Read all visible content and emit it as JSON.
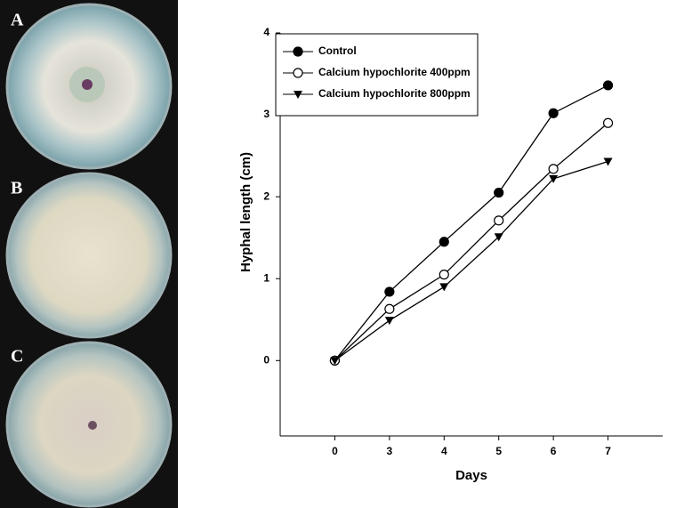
{
  "panels": {
    "labels": [
      "A",
      "B",
      "C"
    ]
  },
  "chart_data": {
    "type": "line",
    "x_label": "Days",
    "y_label": "Hyphal length (cm)",
    "categories": [
      "0",
      "3",
      "4",
      "5",
      "6",
      "7"
    ],
    "series": [
      {
        "name": "Control",
        "color": "#000000",
        "marker": "filled-circle",
        "values": [
          0,
          0.84,
          1.45,
          2.05,
          3.02,
          3.36
        ]
      },
      {
        "name": "Calcium hypochlorite 400ppm",
        "color": "#000000",
        "marker": "open-circle",
        "values": [
          0,
          0.63,
          1.05,
          1.71,
          2.34,
          2.9
        ]
      },
      {
        "name": "Calcium hypochlorite 800ppm",
        "color": "#000000",
        "marker": "filled-triangle-down",
        "values": [
          0,
          0.49,
          0.9,
          1.51,
          2.22,
          2.43
        ]
      }
    ],
    "ylim": [
      -0.92,
      4
    ],
    "yticks": [
      0,
      1,
      2,
      3,
      4
    ],
    "grid": false,
    "legend": "top-left"
  }
}
